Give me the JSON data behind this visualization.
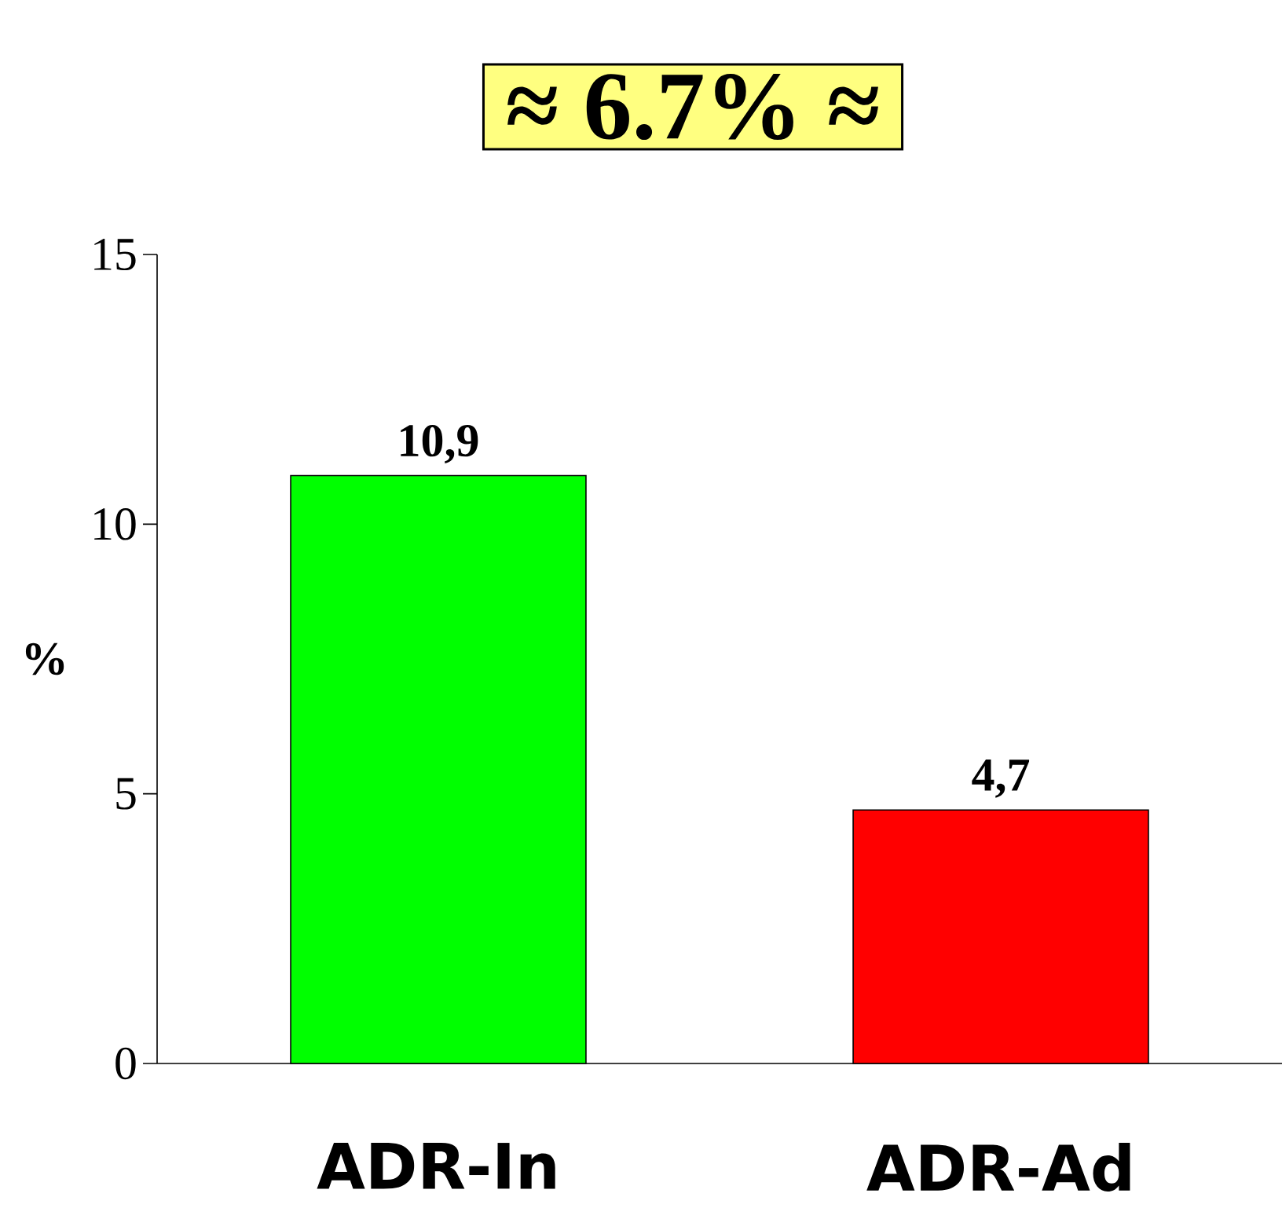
{
  "chart_data": {
    "type": "bar",
    "title": "≈ 6.7% ≈",
    "ylabel": "%",
    "categories": [
      "ADR-In",
      "ADR-Ad"
    ],
    "values": [
      10.9,
      4.7
    ],
    "colors": [
      "#00ff00",
      "#ff0000"
    ],
    "value_labels": [
      "10,9",
      "4,7"
    ],
    "ylim": [
      0,
      15
    ],
    "yticks": [
      0,
      5,
      10,
      15
    ]
  }
}
